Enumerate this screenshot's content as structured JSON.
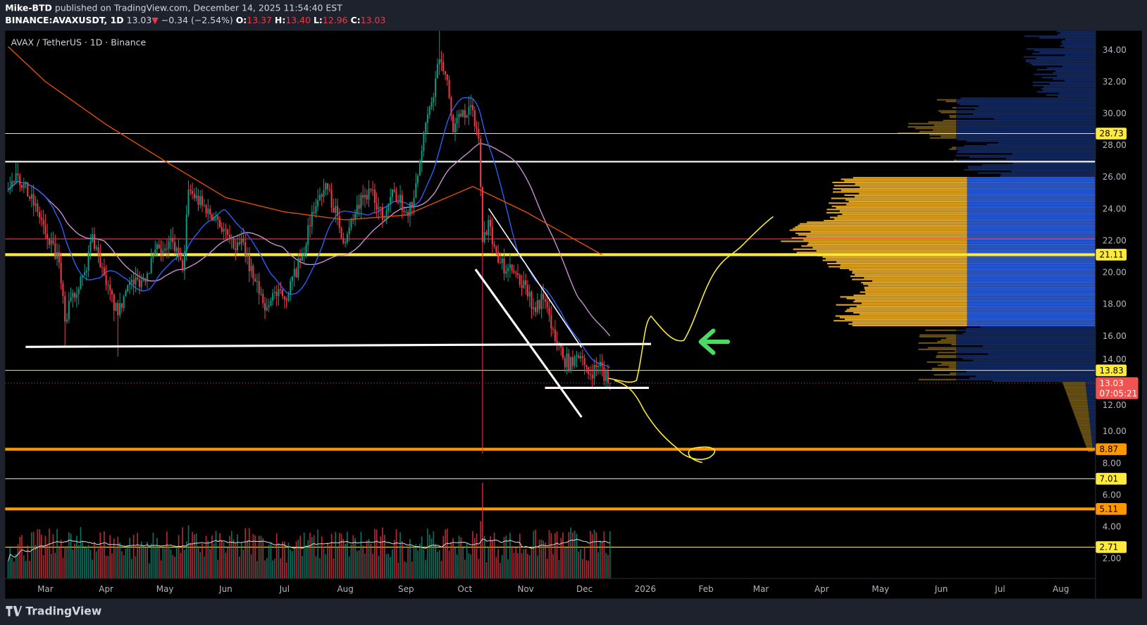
{
  "header": {
    "author": "Mike-BTD",
    "published": "published on TradingView.com, December 14, 2025 11:54:40 EST",
    "symbol": "BINANCE:AVAXUSDT, 1D",
    "last": "13.03",
    "change": "−0.34 (−2.54%)",
    "o_label": "O:",
    "o": "13.37",
    "h_label": "H:",
    "h": "13.40",
    "l_label": "L:",
    "l": "12.96",
    "c_label": "C:",
    "c": "13.03",
    "down_color": "#f23645"
  },
  "legend": "AVAX / TetherUS · 1D · Binance",
  "footer": {
    "brand": "TradingView"
  },
  "chart_data": {
    "type": "candlestick",
    "title": "AVAX / TetherUS · 1D · Binance",
    "ylim": [
      1,
      35.2
    ],
    "y_ticks": [
      "34.00",
      "32.00",
      "30.00",
      "28.00",
      "26.00",
      "24.00",
      "22.00",
      "20.00",
      "18.00",
      "16.00",
      "14.00",
      "12.00",
      "10.00",
      "8.00",
      "6.00",
      "4.00",
      "2.00"
    ],
    "x_ticks": [
      {
        "label": "Mar",
        "date": "2025-03-01"
      },
      {
        "label": "Apr",
        "date": "2025-04-01"
      },
      {
        "label": "May",
        "date": "2025-05-01"
      },
      {
        "label": "Jun",
        "date": "2025-06-01"
      },
      {
        "label": "Jul",
        "date": "2025-07-01"
      },
      {
        "label": "Aug",
        "date": "2025-08-01"
      },
      {
        "label": "Sep",
        "date": "2025-09-01"
      },
      {
        "label": "Oct",
        "date": "2025-10-01"
      },
      {
        "label": "Nov",
        "date": "2025-11-01"
      },
      {
        "label": "Dec",
        "date": "2025-12-01"
      },
      {
        "label": "2026",
        "date": "2026-01-01"
      },
      {
        "label": "Feb",
        "date": "2026-02-01"
      },
      {
        "label": "Mar",
        "date": "2026-03-01"
      },
      {
        "label": "Apr",
        "date": "2026-04-01"
      },
      {
        "label": "May",
        "date": "2026-05-01"
      },
      {
        "label": "Jun",
        "date": "2026-06-01"
      },
      {
        "label": "Jul",
        "date": "2026-07-01"
      },
      {
        "label": "Aug",
        "date": "2026-08-01"
      }
    ],
    "approx_closes": [
      [
        "2025-02-10",
        25.2
      ],
      [
        "2025-02-15",
        26.1
      ],
      [
        "2025-02-25",
        23.8
      ],
      [
        "2025-03-01",
        22.4
      ],
      [
        "2025-03-08",
        20.6
      ],
      [
        "2025-03-11",
        16.9
      ],
      [
        "2025-03-15",
        18.7
      ],
      [
        "2025-03-22",
        20.1
      ],
      [
        "2025-03-25",
        22.4
      ],
      [
        "2025-04-01",
        19.2
      ],
      [
        "2025-04-07",
        17.3
      ],
      [
        "2025-04-12",
        19.2
      ],
      [
        "2025-04-20",
        19.6
      ],
      [
        "2025-04-28",
        21.5
      ],
      [
        "2025-05-05",
        21.9
      ],
      [
        "2025-05-10",
        20.1
      ],
      [
        "2025-05-13",
        25.2
      ],
      [
        "2025-05-20",
        24.2
      ],
      [
        "2025-05-28",
        23.3
      ],
      [
        "2025-06-05",
        21.5
      ],
      [
        "2025-06-10",
        21.9
      ],
      [
        "2025-06-15",
        19.6
      ],
      [
        "2025-06-22",
        17.8
      ],
      [
        "2025-06-25",
        18.7
      ],
      [
        "2025-07-01",
        18.3
      ],
      [
        "2025-07-10",
        21.0
      ],
      [
        "2025-07-15",
        23.8
      ],
      [
        "2025-07-22",
        25.6
      ],
      [
        "2025-08-01",
        21.9
      ],
      [
        "2025-08-05",
        23.3
      ],
      [
        "2025-08-10",
        24.7
      ],
      [
        "2025-08-15",
        25.2
      ],
      [
        "2025-08-20",
        23.3
      ],
      [
        "2025-08-25",
        25.2
      ],
      [
        "2025-09-01",
        23.8
      ],
      [
        "2025-09-05",
        24.7
      ],
      [
        "2025-09-10",
        28.8
      ],
      [
        "2025-09-14",
        30.7
      ],
      [
        "2025-09-18",
        33.4
      ],
      [
        "2025-09-22",
        32.1
      ],
      [
        "2025-09-25",
        28.8
      ],
      [
        "2025-09-30",
        30.2
      ],
      [
        "2025-10-05",
        30.2
      ],
      [
        "2025-10-08",
        28.4
      ],
      [
        "2025-10-10",
        21.9
      ],
      [
        "2025-10-13",
        23.3
      ],
      [
        "2025-10-18",
        20.6
      ],
      [
        "2025-10-25",
        20.1
      ],
      [
        "2025-11-01",
        19.2
      ],
      [
        "2025-11-05",
        17.8
      ],
      [
        "2025-11-10",
        18.3
      ],
      [
        "2025-11-15",
        16.4
      ],
      [
        "2025-11-20",
        14.6
      ],
      [
        "2025-11-25",
        14.1
      ],
      [
        "2025-11-28",
        14.6
      ],
      [
        "2025-12-03",
        13.6
      ],
      [
        "2025-12-08",
        14.1
      ],
      [
        "2025-12-14",
        13.03
      ]
    ],
    "extremes": [
      {
        "date": "2025-03-11",
        "low": 15.3
      },
      {
        "date": "2025-04-07",
        "low": 14.7
      },
      {
        "date": "2025-09-18",
        "high": 35.2
      },
      {
        "date": "2025-10-10",
        "low": 8.6
      }
    ],
    "ma_long": [
      [
        "2025-02-10",
        34.2
      ],
      [
        "2025-03-01",
        32.0
      ],
      [
        "2025-04-01",
        29.3
      ],
      [
        "2025-05-01",
        27.0
      ],
      [
        "2025-06-01",
        24.7
      ],
      [
        "2025-07-01",
        23.8
      ],
      [
        "2025-08-01",
        23.3
      ],
      [
        "2025-09-01",
        23.6
      ],
      [
        "2025-10-05",
        25.4
      ],
      [
        "2025-11-01",
        23.8
      ],
      [
        "2025-12-10",
        21.1
      ]
    ],
    "horizontal_levels": [
      {
        "price": "28.73",
        "color": "#ffeb3b",
        "weight": "thin",
        "labeled": true
      },
      {
        "price": "26.96",
        "color": "#ffffff",
        "weight": "medium",
        "labeled": false
      },
      {
        "price": "22.10",
        "color": "#f23645",
        "weight": "thin",
        "labeled": false
      },
      {
        "price": "21.11",
        "color": "#ffeb3b",
        "weight": "thick",
        "labeled": true
      },
      {
        "price": "13.83",
        "color": "#ffeb3b",
        "weight": "thin",
        "labeled": true
      },
      {
        "price": "8.87",
        "color": "#ff9800",
        "weight": "thick",
        "labeled": true
      },
      {
        "price": "7.01",
        "color": "#ffeb3b",
        "weight": "thin",
        "labeled": true
      },
      {
        "price": "5.11",
        "color": "#ff9800",
        "weight": "thick",
        "labeled": true
      },
      {
        "price": "2.71",
        "color": "#ffeb3b",
        "weight": "thin",
        "labeled": true
      }
    ],
    "current_price": {
      "price": "13.03",
      "countdown": "07:05:21",
      "color": "#f05350"
    },
    "colors": {
      "up": "#089981",
      "down": "#f23645",
      "ma_fast": "#2962ff",
      "ma_mid": "#ce93d8",
      "ma_long": "#e65100",
      "drawing": "#ffeb3b",
      "arrow": "#4cd964"
    }
  }
}
